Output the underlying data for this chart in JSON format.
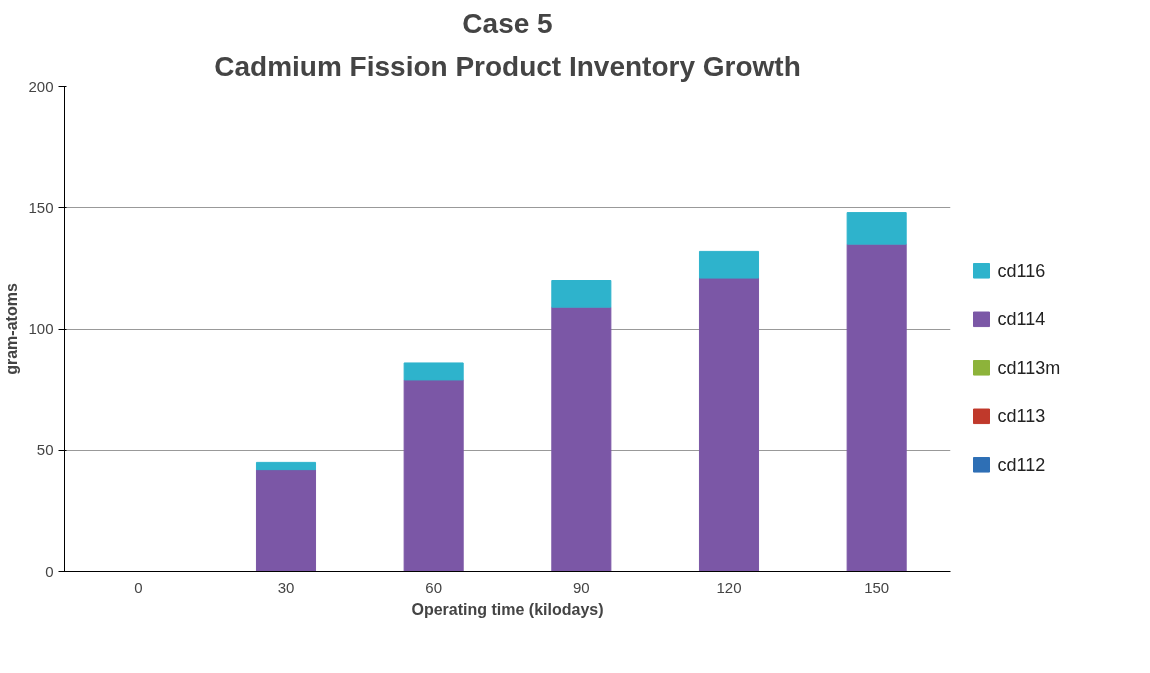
{
  "chart_data": {
    "type": "bar",
    "title": "Case 5",
    "subtitle": "Cadmium Fission Product Inventory Growth",
    "xlabel": "Operating time (kilodays)",
    "ylabel": "gram-atoms",
    "categories": [
      "0",
      "30",
      "60",
      "90",
      "120",
      "150"
    ],
    "stacked": true,
    "series": [
      {
        "name": "cd112",
        "color": "#2e6fb5",
        "values": [
          0,
          0,
          0,
          0,
          0,
          0
        ]
      },
      {
        "name": "cd113",
        "color": "#c0392b",
        "values": [
          0,
          0,
          0,
          0,
          0,
          0
        ]
      },
      {
        "name": "cd113m",
        "color": "#8db33a",
        "values": [
          0,
          0,
          0,
          0,
          0,
          0
        ]
      },
      {
        "name": "cd114",
        "color": "#7b57a6",
        "values": [
          0,
          42,
          79,
          109,
          121,
          135
        ]
      },
      {
        "name": "cd116",
        "color": "#2eb3cc",
        "values": [
          0,
          3,
          7,
          11,
          11,
          13
        ]
      }
    ],
    "ylim": [
      0,
      200
    ],
    "yticks": [
      0,
      50,
      100,
      150,
      200
    ],
    "grid": "y",
    "legend": "right"
  }
}
